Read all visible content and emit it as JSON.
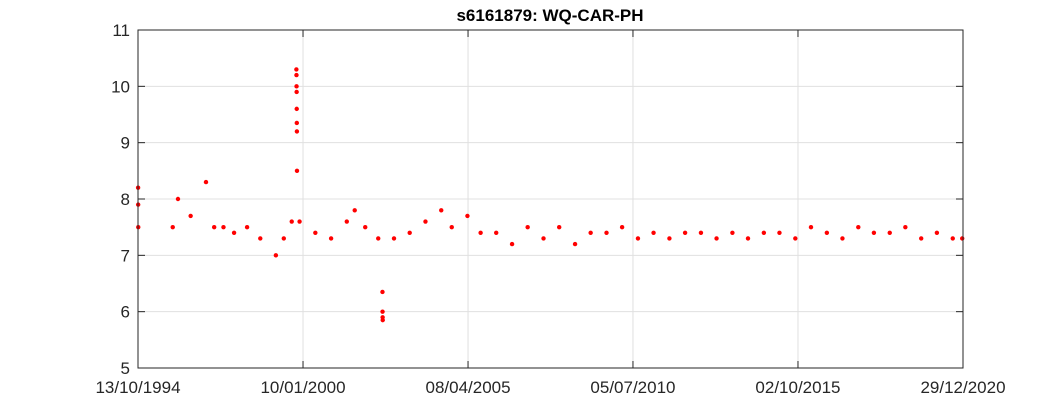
{
  "chart_data": {
    "type": "scatter",
    "title": "s6161879: WQ-CAR-PH",
    "xlabel": "",
    "ylabel": "",
    "x_axis_type": "date",
    "xlim": [
      "1994-10-13",
      "2020-12-29"
    ],
    "ylim": [
      5,
      11
    ],
    "x_ticks": [
      {
        "date": "1994-10-13",
        "label": "13/10/1994"
      },
      {
        "date": "2000-01-10",
        "label": "10/01/2000"
      },
      {
        "date": "2005-04-08",
        "label": "08/04/2005"
      },
      {
        "date": "2010-07-05",
        "label": "05/07/2010"
      },
      {
        "date": "2015-10-02",
        "label": "02/10/2015"
      },
      {
        "date": "2020-12-29",
        "label": "29/12/2020"
      }
    ],
    "y_ticks": [
      5,
      6,
      7,
      8,
      9,
      10,
      11
    ],
    "grid": true,
    "legend": "none",
    "marker_color": "#ff0000",
    "series": [
      {
        "x": [
          "1994-10-14",
          "1994-10-15",
          "1994-10-16",
          "1995-11-20",
          "1996-01-20",
          "1996-06-15",
          "1996-12-10",
          "1997-03-15",
          "1997-07-01",
          "1997-11-01",
          "1998-04-01",
          "1998-09-01",
          "1999-03-01",
          "1999-06-01",
          "1999-09-01",
          "1999-12-01",
          "2000-06-01",
          "2000-12-01",
          "2001-06-01",
          "2001-09-01",
          "2002-01-01",
          "2002-06-01",
          "2002-12-01",
          "2003-06-01",
          "2003-12-01",
          "2004-06-01",
          "2004-10-01",
          "2005-04-01",
          "2005-09-01",
          "2006-03-01",
          "2006-09-01",
          "2007-03-01",
          "2007-09-01",
          "2008-03-01",
          "2008-09-01",
          "2009-03-01",
          "2009-09-01",
          "2010-03-01",
          "2010-09-01",
          "2011-03-01",
          "2011-09-01",
          "2012-03-01",
          "2012-09-01",
          "2013-03-01",
          "2013-09-01",
          "2014-03-01",
          "2014-09-01",
          "2015-03-01",
          "2015-09-01",
          "2016-03-01",
          "2016-09-01",
          "2017-03-01",
          "2017-09-01",
          "2018-03-01",
          "2018-09-01",
          "2019-03-01",
          "2019-09-01",
          "2020-03-01",
          "2020-09-01",
          "2020-12-20"
        ],
        "y": [
          8.2,
          7.9,
          7.5,
          7.5,
          8.0,
          7.7,
          8.3,
          7.5,
          7.5,
          7.4,
          7.5,
          7.3,
          7.0,
          7.3,
          7.6,
          7.6,
          7.4,
          7.3,
          7.6,
          7.8,
          7.5,
          7.3,
          7.3,
          7.4,
          7.6,
          7.8,
          7.5,
          7.7,
          7.4,
          7.4,
          7.2,
          7.5,
          7.3,
          7.5,
          7.2,
          7.4,
          7.4,
          7.5,
          7.3,
          7.4,
          7.3,
          7.4,
          7.4,
          7.3,
          7.4,
          7.3,
          7.4,
          7.4,
          7.3,
          7.5,
          7.4,
          7.3,
          7.5,
          7.4,
          7.4,
          7.5,
          7.3,
          7.4,
          7.3,
          7.3
        ]
      },
      {
        "x": [
          "1999-10-25",
          "1999-10-26",
          "1999-10-27",
          "1999-10-28",
          "1999-10-29",
          "1999-10-30",
          "1999-10-31",
          "1999-11-01",
          "2002-07-20",
          "2002-07-21",
          "2002-07-22",
          "2002-07-23"
        ],
        "y": [
          10.3,
          10.2,
          10.0,
          9.9,
          9.6,
          9.35,
          9.2,
          8.5,
          6.35,
          6.0,
          5.9,
          5.85
        ]
      }
    ]
  }
}
